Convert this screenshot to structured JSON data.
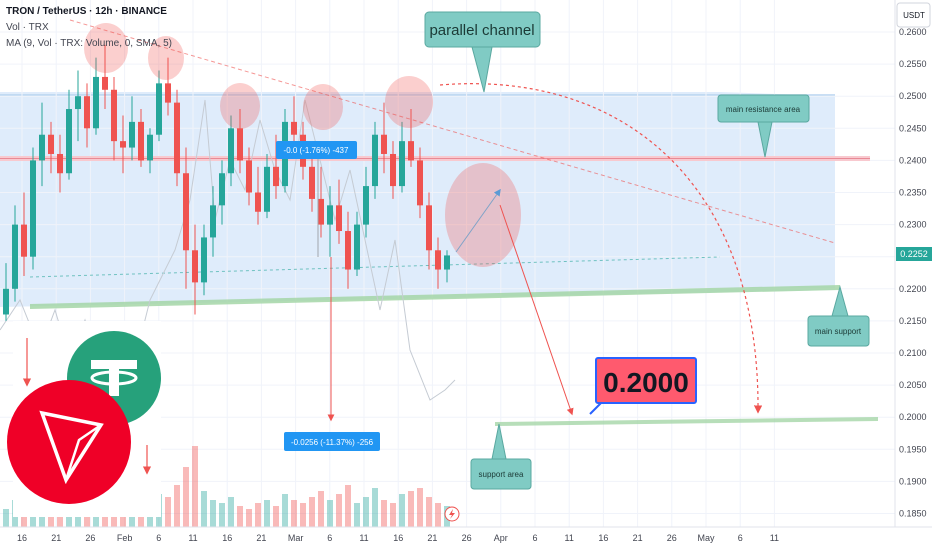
{
  "header": {
    "symbol": "TRON / TetherUS · 12h · BINANCE",
    "indicator_vol": "Vol · TRX",
    "indicator_ma": "MA (9, Vol · TRX: Volume, 0, SMA, 5)"
  },
  "currency": "USDT",
  "colors": {
    "up": "#26a69a",
    "down": "#ef5350",
    "channel": "#bbdefb",
    "teal_callout": "#80cbc4",
    "target_box": "#ff5a6e",
    "price_tag": "#26a69a"
  },
  "chart_data": {
    "type": "candlestick",
    "y_axis": {
      "ticks": [
        "0.2600",
        "0.2550",
        "0.2500",
        "0.2450",
        "0.2400",
        "0.2350",
        "0.2300",
        "0.2250",
        "0.2200",
        "0.2150",
        "0.2100",
        "0.2050",
        "0.2000",
        "0.1950",
        "0.1900",
        "0.1850"
      ],
      "ylim": [
        0.184,
        0.2615
      ]
    },
    "x_axis": {
      "ticks": [
        "16",
        "21",
        "26",
        "Feb",
        "6",
        "11",
        "16",
        "21",
        "Mar",
        "6",
        "11",
        "16",
        "21",
        "26",
        "Apr",
        "6",
        "11",
        "16",
        "21",
        "26",
        "May",
        "6",
        "11"
      ]
    },
    "current_price": "0.2252",
    "annotations": {
      "parallel_channel": "parallel channel",
      "resistance": "main resistance area",
      "support": "main support",
      "support_area": "support area",
      "target": "0.2000",
      "measure_top": "-0.0 (-1.76%) -437",
      "measure_bottom": "-0.0256 (-11.37%) -256"
    },
    "levels": {
      "resistance": 0.24,
      "target": 0.2
    },
    "candles": [
      [
        0.216,
        0.224,
        0.215,
        0.22
      ],
      [
        0.22,
        0.233,
        0.218,
        0.23
      ],
      [
        0.23,
        0.235,
        0.222,
        0.225
      ],
      [
        0.225,
        0.242,
        0.223,
        0.24
      ],
      [
        0.24,
        0.249,
        0.236,
        0.244
      ],
      [
        0.244,
        0.246,
        0.238,
        0.241
      ],
      [
        0.241,
        0.244,
        0.235,
        0.238
      ],
      [
        0.238,
        0.251,
        0.237,
        0.248
      ],
      [
        0.248,
        0.254,
        0.243,
        0.25
      ],
      [
        0.25,
        0.252,
        0.242,
        0.245
      ],
      [
        0.245,
        0.256,
        0.244,
        0.253
      ],
      [
        0.253,
        0.258,
        0.248,
        0.251
      ],
      [
        0.251,
        0.253,
        0.24,
        0.243
      ],
      [
        0.243,
        0.247,
        0.238,
        0.242
      ],
      [
        0.242,
        0.25,
        0.24,
        0.246
      ],
      [
        0.246,
        0.248,
        0.239,
        0.24
      ],
      [
        0.24,
        0.245,
        0.238,
        0.244
      ],
      [
        0.244,
        0.254,
        0.243,
        0.252
      ],
      [
        0.252,
        0.256,
        0.247,
        0.249
      ],
      [
        0.249,
        0.251,
        0.236,
        0.238
      ],
      [
        0.238,
        0.242,
        0.22,
        0.226
      ],
      [
        0.226,
        0.23,
        0.216,
        0.221
      ],
      [
        0.221,
        0.23,
        0.219,
        0.228
      ],
      [
        0.228,
        0.236,
        0.225,
        0.233
      ],
      [
        0.233,
        0.24,
        0.23,
        0.238
      ],
      [
        0.238,
        0.247,
        0.236,
        0.245
      ],
      [
        0.245,
        0.248,
        0.238,
        0.24
      ],
      [
        0.24,
        0.242,
        0.233,
        0.235
      ],
      [
        0.235,
        0.239,
        0.23,
        0.232
      ],
      [
        0.232,
        0.241,
        0.231,
        0.239
      ],
      [
        0.239,
        0.244,
        0.234,
        0.236
      ],
      [
        0.236,
        0.248,
        0.235,
        0.246
      ],
      [
        0.246,
        0.25,
        0.242,
        0.244
      ],
      [
        0.244,
        0.246,
        0.237,
        0.239
      ],
      [
        0.239,
        0.243,
        0.232,
        0.234
      ],
      [
        0.234,
        0.239,
        0.228,
        0.23
      ],
      [
        0.23,
        0.236,
        0.225,
        0.233
      ],
      [
        0.233,
        0.237,
        0.227,
        0.229
      ],
      [
        0.229,
        0.232,
        0.22,
        0.223
      ],
      [
        0.223,
        0.232,
        0.222,
        0.23
      ],
      [
        0.23,
        0.239,
        0.228,
        0.236
      ],
      [
        0.236,
        0.246,
        0.234,
        0.244
      ],
      [
        0.244,
        0.249,
        0.238,
        0.241
      ],
      [
        0.241,
        0.243,
        0.234,
        0.236
      ],
      [
        0.236,
        0.246,
        0.235,
        0.243
      ],
      [
        0.243,
        0.248,
        0.239,
        0.24
      ],
      [
        0.24,
        0.242,
        0.231,
        0.233
      ],
      [
        0.233,
        0.235,
        0.223,
        0.226
      ],
      [
        0.226,
        0.228,
        0.22,
        0.223
      ],
      [
        0.223,
        0.226,
        0.221,
        0.2252
      ]
    ],
    "volume_bars": [
      6,
      9,
      7,
      11,
      14,
      8,
      7,
      10,
      12,
      9,
      13,
      15,
      8,
      7,
      9,
      6,
      8,
      11,
      10,
      14,
      20,
      27,
      12,
      9,
      8,
      10,
      7,
      6,
      8,
      9,
      7,
      11,
      9,
      8,
      10,
      12,
      9,
      11,
      14,
      8,
      10,
      13,
      9,
      8,
      11,
      12,
      13,
      10,
      8,
      7
    ]
  }
}
